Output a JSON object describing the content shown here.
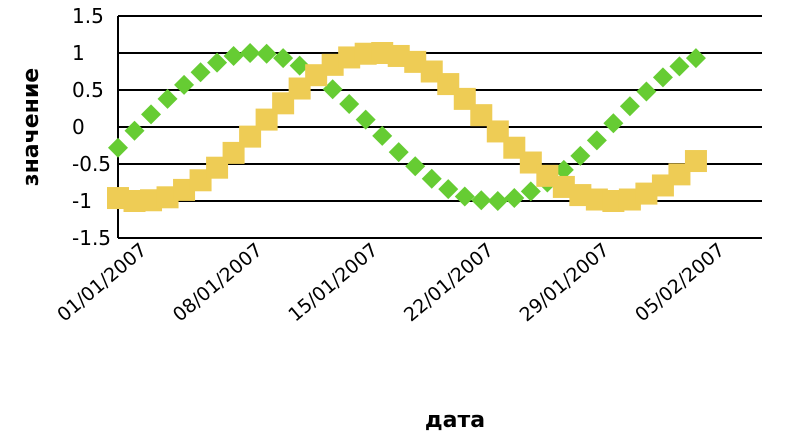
{
  "chart_data": {
    "type": "scatter",
    "title": "",
    "xlabel": "дата",
    "ylabel": "значение",
    "x_tick_labels": [
      "01/01/2007",
      "08/01/2007",
      "15/01/2007",
      "22/01/2007",
      "29/01/2007",
      "05/02/2007"
    ],
    "y_tick_labels": [
      "1.5",
      "1",
      "0.5",
      "0",
      "-0.5",
      "-1",
      "-1.5"
    ],
    "ylim": [
      -1.5,
      1.5
    ],
    "xlim": [
      "2007-01-01",
      "2007-02-09"
    ],
    "grid": true,
    "legend": "none",
    "x": [
      "2007-01-01",
      "2007-01-02",
      "2007-01-03",
      "2007-01-04",
      "2007-01-05",
      "2007-01-06",
      "2007-01-07",
      "2007-01-08",
      "2007-01-09",
      "2007-01-10",
      "2007-01-11",
      "2007-01-12",
      "2007-01-13",
      "2007-01-14",
      "2007-01-15",
      "2007-01-16",
      "2007-01-17",
      "2007-01-18",
      "2007-01-19",
      "2007-01-20",
      "2007-01-21",
      "2007-01-22",
      "2007-01-23",
      "2007-01-24",
      "2007-01-25",
      "2007-01-26",
      "2007-01-27",
      "2007-01-28",
      "2007-01-29",
      "2007-01-30",
      "2007-01-31",
      "2007-02-01",
      "2007-02-02",
      "2007-02-03",
      "2007-02-04",
      "2007-02-05"
    ],
    "series": [
      {
        "color": "#66cc33",
        "marker": "diamond",
        "values": [
          -0.28,
          -0.05,
          0.17,
          0.38,
          0.57,
          0.74,
          0.87,
          0.96,
          1.0,
          0.99,
          0.93,
          0.83,
          0.69,
          0.51,
          0.31,
          0.1,
          -0.12,
          -0.34,
          -0.53,
          -0.7,
          -0.84,
          -0.94,
          -0.99,
          -1.0,
          -0.96,
          -0.87,
          -0.75,
          -0.58,
          -0.39,
          -0.18,
          0.05,
          0.28,
          0.48,
          0.67,
          0.82,
          0.93
        ]
      },
      {
        "color": "#eecc55",
        "marker": "square",
        "values": [
          -0.96,
          -1.0,
          -0.99,
          -0.95,
          -0.85,
          -0.72,
          -0.55,
          -0.35,
          -0.13,
          0.1,
          0.32,
          0.52,
          0.7,
          0.84,
          0.94,
          0.99,
          1.0,
          0.96,
          0.88,
          0.75,
          0.58,
          0.38,
          0.16,
          -0.06,
          -0.28,
          -0.48,
          -0.66,
          -0.81,
          -0.92,
          -0.98,
          -1.0,
          -0.98,
          -0.9,
          -0.79,
          -0.64,
          -0.46
        ]
      }
    ]
  }
}
